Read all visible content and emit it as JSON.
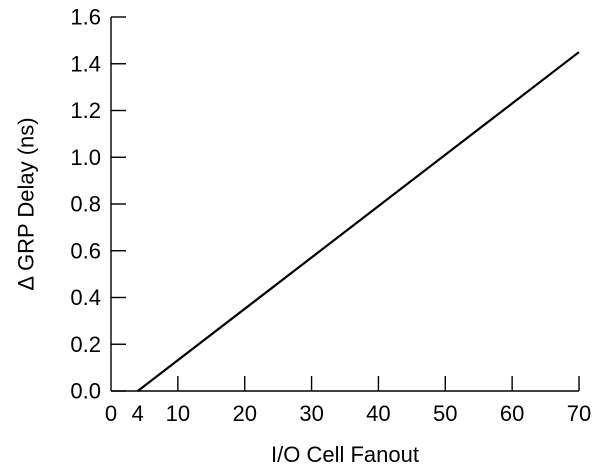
{
  "chart_data": {
    "type": "line",
    "title": "",
    "xlabel": "I/O Cell Fanout",
    "ylabel": "Δ GRP Delay (ns)",
    "xlim": [
      0,
      70
    ],
    "ylim": [
      0.0,
      1.6
    ],
    "xticks": [
      0,
      4,
      10,
      20,
      30,
      40,
      50,
      60,
      70
    ],
    "xtick_labels": [
      "0",
      "4",
      "10",
      "20",
      "30",
      "40",
      "50",
      "60",
      "70"
    ],
    "yticks": [
      0.0,
      0.2,
      0.4,
      0.6,
      0.8,
      1.0,
      1.2,
      1.4,
      1.6
    ],
    "ytick_labels": [
      "0.0",
      "0.2",
      "0.4",
      "0.6",
      "0.8",
      "1.0",
      "1.2",
      "1.4",
      "1.6"
    ],
    "grid": false,
    "series": [
      {
        "x": [
          4,
          70
        ],
        "y": [
          0.0,
          1.45
        ],
        "color": "#000000"
      }
    ]
  }
}
